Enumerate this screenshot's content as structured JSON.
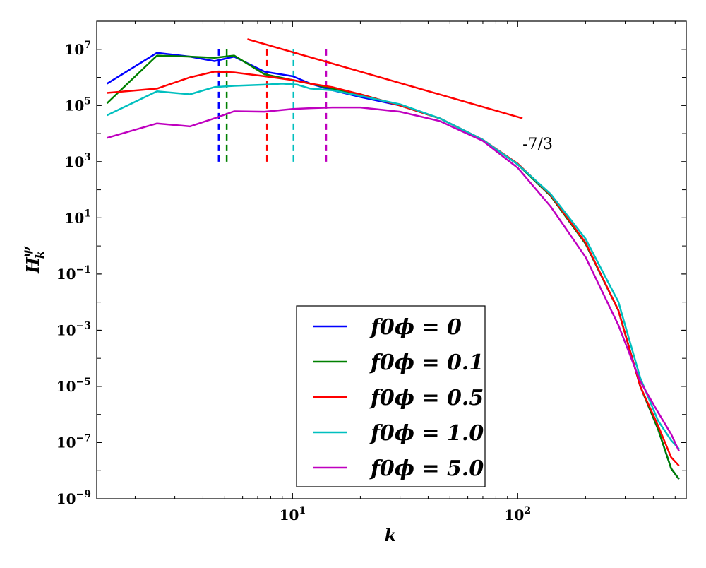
{
  "chart_data": {
    "type": "line",
    "x_scale": "log",
    "y_scale": "log",
    "xlabel": "k",
    "ylabel": "H",
    "ylabel_sup": "ψ",
    "ylabel_sub": "k",
    "xlim": [
      1.35,
      560
    ],
    "ylim": [
      1e-09,
      100000000.0
    ],
    "x_ticks": [
      {
        "value": 10,
        "base": "10",
        "exp": "1"
      },
      {
        "value": 100,
        "base": "10",
        "exp": "2"
      }
    ],
    "y_ticks": [
      {
        "value": 1e-09,
        "base": "10",
        "exp": "−9"
      },
      {
        "value": 1e-07,
        "base": "10",
        "exp": "−7"
      },
      {
        "value": 1e-05,
        "base": "10",
        "exp": "−5"
      },
      {
        "value": 0.001,
        "base": "10",
        "exp": "−3"
      },
      {
        "value": 0.1,
        "base": "10",
        "exp": "−1"
      },
      {
        "value": 10,
        "base": "10",
        "exp": "1"
      },
      {
        "value": 1000,
        "base": "10",
        "exp": "3"
      },
      {
        "value": 100000,
        "base": "10",
        "exp": "5"
      },
      {
        "value": 10000000,
        "base": "10",
        "exp": "7"
      }
    ],
    "legend_position": "lower-center",
    "series": [
      {
        "name": "f0phi_0",
        "legend_label": "f0ϕ = 0",
        "color": "#0000ff",
        "x": [
          1.5,
          2.5,
          3.5,
          4.5,
          5.5,
          7.5,
          10,
          12,
          15,
          20,
          30,
          45,
          70,
          100,
          140,
          200,
          280,
          350,
          420,
          480,
          520
        ],
        "y": [
          600000.0,
          7500000.0,
          5500000.0,
          3800000.0,
          5500000.0,
          1600000.0,
          1100000.0,
          600000.0,
          350000.0,
          200000.0,
          100000.0,
          35000.0,
          6000.0,
          800.0,
          60.0,
          1.2,
          0.005,
          1e-05,
          3e-07,
          1.2e-08,
          5e-09
        ]
      },
      {
        "name": "f0phi_0.1",
        "legend_label": "f0ϕ = 0.1",
        "color": "#008000",
        "x": [
          1.5,
          2.5,
          3.5,
          4.5,
          5.5,
          7.5,
          10,
          12,
          15,
          20,
          30,
          45,
          70,
          100,
          140,
          200,
          280,
          350,
          420,
          480,
          520
        ],
        "y": [
          120000.0,
          6000000.0,
          5500000.0,
          5000000.0,
          6000000.0,
          1300000.0,
          800000.0,
          600000.0,
          400000.0,
          250000.0,
          100000.0,
          35000.0,
          6000.0,
          800.0,
          60.0,
          1.2,
          0.005,
          1e-05,
          3e-07,
          1.2e-08,
          5e-09
        ]
      },
      {
        "name": "f0phi_0.5",
        "legend_label": "f0ϕ = 0.5",
        "color": "#ff0000",
        "x": [
          1.5,
          2.5,
          3.5,
          4.5,
          5.5,
          7.5,
          10,
          12,
          15,
          20,
          30,
          45,
          70,
          100,
          140,
          200,
          280,
          350,
          420,
          480,
          520
        ],
        "y": [
          280000.0,
          400000.0,
          1000000.0,
          1600000.0,
          1500000.0,
          1100000.0,
          800000.0,
          600000.0,
          450000.0,
          250000.0,
          100000.0,
          35000.0,
          6000.0,
          850.0,
          65.0,
          1.3,
          0.005,
          1e-05,
          4e-07,
          3e-08,
          1.5e-08
        ]
      },
      {
        "name": "f0phi_1.0",
        "legend_label": "f0ϕ = 1.0",
        "color": "#00bfbf",
        "x": [
          1.5,
          2.5,
          3.5,
          4.5,
          5.5,
          7.5,
          9,
          10.5,
          12,
          15,
          20,
          30,
          45,
          70,
          100,
          140,
          200,
          280,
          350,
          420,
          480,
          520
        ],
        "y": [
          45000.0,
          320000.0,
          250000.0,
          450000.0,
          500000.0,
          550000.0,
          600000.0,
          550000.0,
          400000.0,
          350000.0,
          220000.0,
          110000.0,
          35000.0,
          6000.0,
          800.0,
          70.0,
          1.8,
          0.01,
          2e-05,
          6e-07,
          1.2e-07,
          6e-08
        ]
      },
      {
        "name": "f0phi_5.0",
        "legend_label": "f0ϕ = 5.0",
        "color": "#bf00bf",
        "x": [
          1.5,
          2.5,
          3.5,
          4.5,
          5.5,
          7.5,
          10,
          12,
          15,
          20,
          30,
          45,
          70,
          100,
          140,
          200,
          280,
          350,
          420,
          480,
          520
        ],
        "y": [
          7000.0,
          23000.0,
          18000.0,
          35000.0,
          62000.0,
          60000.0,
          75000.0,
          80000.0,
          85000.0,
          85000.0,
          60000.0,
          28000.0,
          5500.0,
          600.0,
          25.0,
          0.4,
          0.0015,
          1.5e-05,
          1.2e-06,
          2e-07,
          5e-08
        ]
      }
    ],
    "reference_line": {
      "name": "slope-reference",
      "color": "#ff0000",
      "slope": "-7/3",
      "x": [
        6.3,
        105
      ],
      "y": [
        23000000.0,
        35000.0
      ],
      "label": "-7/3",
      "label_x": 105,
      "label_y": 4500.0
    },
    "vertical_markers": [
      {
        "name": "marker-blue",
        "x": 4.7,
        "color": "#0000ff",
        "y_bottom": 1000,
        "y_top": 12000000.0
      },
      {
        "name": "marker-green",
        "x": 5.1,
        "color": "#008000",
        "y_bottom": 1000,
        "y_top": 12000000.0
      },
      {
        "name": "marker-red",
        "x": 7.7,
        "color": "#ff0000",
        "y_bottom": 1000,
        "y_top": 12000000.0
      },
      {
        "name": "marker-cyan",
        "x": 10.1,
        "color": "#00bfbf",
        "y_bottom": 1000,
        "y_top": 12000000.0
      },
      {
        "name": "marker-magenta",
        "x": 14.1,
        "color": "#bf00bf",
        "y_bottom": 1000,
        "y_top": 12000000.0
      }
    ]
  }
}
